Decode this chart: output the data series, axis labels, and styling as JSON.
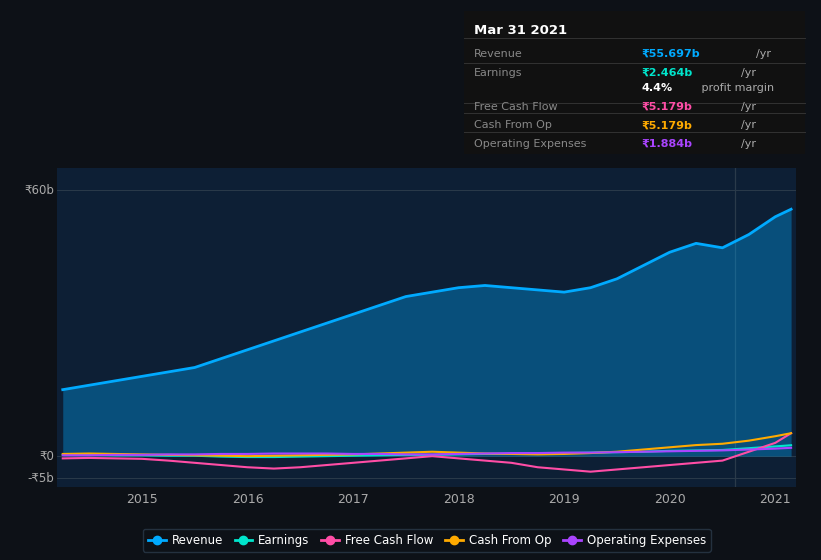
{
  "bg_color": "#0d1117",
  "plot_bg_color": "#0d1f35",
  "ylim": [
    -7000000000,
    65000000000
  ],
  "years": [
    2014.25,
    2014.5,
    2014.75,
    2015.0,
    2015.25,
    2015.5,
    2015.75,
    2016.0,
    2016.25,
    2016.5,
    2016.75,
    2017.0,
    2017.25,
    2017.5,
    2017.75,
    2018.0,
    2018.25,
    2018.5,
    2018.75,
    2019.0,
    2019.25,
    2019.5,
    2019.75,
    2020.0,
    2020.25,
    2020.5,
    2020.75,
    2021.0,
    2021.15
  ],
  "revenue": [
    15000000000,
    16000000000,
    17000000000,
    18000000000,
    19000000000,
    20000000000,
    22000000000,
    24000000000,
    26000000000,
    28000000000,
    30000000000,
    32000000000,
    34000000000,
    36000000000,
    37000000000,
    38000000000,
    38500000000,
    38000000000,
    37500000000,
    37000000000,
    38000000000,
    40000000000,
    43000000000,
    46000000000,
    48000000000,
    47000000000,
    50000000000,
    54000000000,
    55700000000
  ],
  "earnings": [
    300000000,
    300000000,
    200000000,
    200000000,
    100000000,
    100000000,
    -100000000,
    -200000000,
    -200000000,
    -100000000,
    0,
    100000000,
    200000000,
    300000000,
    300000000,
    400000000,
    500000000,
    500000000,
    600000000,
    700000000,
    800000000,
    900000000,
    1000000000,
    1200000000,
    1300000000,
    1400000000,
    1800000000,
    2200000000,
    2464000000
  ],
  "free_cash_flow": [
    -500000000,
    -400000000,
    -500000000,
    -600000000,
    -1000000000,
    -1500000000,
    -2000000000,
    -2500000000,
    -2800000000,
    -2500000000,
    -2000000000,
    -1500000000,
    -1000000000,
    -500000000,
    0,
    -500000000,
    -1000000000,
    -1500000000,
    -2500000000,
    -3000000000,
    -3500000000,
    -3000000000,
    -2500000000,
    -2000000000,
    -1500000000,
    -1000000000,
    1000000000,
    3000000000,
    5179000000
  ],
  "cash_from_op": [
    500000000,
    600000000,
    500000000,
    400000000,
    300000000,
    200000000,
    100000000,
    0,
    100000000,
    200000000,
    300000000,
    400000000,
    600000000,
    800000000,
    1000000000,
    800000000,
    600000000,
    500000000,
    400000000,
    500000000,
    700000000,
    1000000000,
    1500000000,
    2000000000,
    2500000000,
    2800000000,
    3500000000,
    4500000000,
    5179000000
  ],
  "op_expenses": [
    200000000,
    200000000,
    300000000,
    300000000,
    400000000,
    400000000,
    500000000,
    500000000,
    600000000,
    600000000,
    600000000,
    500000000,
    500000000,
    400000000,
    400000000,
    500000000,
    600000000,
    700000000,
    700000000,
    800000000,
    800000000,
    900000000,
    1000000000,
    1100000000,
    1200000000,
    1300000000,
    1500000000,
    1700000000,
    1884000000
  ],
  "revenue_color": "#00aaff",
  "earnings_color": "#00e5cc",
  "fcf_color": "#ff4da6",
  "cfo_color": "#ffaa00",
  "opex_color": "#aa44ff",
  "revenue_fill_alpha": 0.35,
  "y60_label": "₹60b",
  "y0_label": "₹0",
  "yn5_label": "-₹5b",
  "xtick_labels": [
    "2015",
    "2016",
    "2017",
    "2018",
    "2019",
    "2020",
    "2021"
  ],
  "xtick_values": [
    2015,
    2016,
    2017,
    2018,
    2019,
    2020,
    2021
  ],
  "separator_x": 2020.62,
  "info_box": {
    "title": "Mar 31 2021",
    "rows": [
      {
        "label": "Revenue",
        "value": "₹55.697b",
        "unit": "/yr",
        "value_color": "#00aaff",
        "divider_below": false
      },
      {
        "label": "Earnings",
        "value": "₹2.464b",
        "unit": "/yr",
        "value_color": "#00e5cc",
        "divider_below": false
      },
      {
        "label": "",
        "value": "4.4%",
        "unit": " profit margin",
        "value_color": "#ffffff",
        "divider_below": true
      },
      {
        "label": "Free Cash Flow",
        "value": "₹5.179b",
        "unit": "/yr",
        "value_color": "#ff4da6",
        "divider_below": false
      },
      {
        "label": "Cash From Op",
        "value": "₹5.179b",
        "unit": "/yr",
        "value_color": "#ffaa00",
        "divider_below": false
      },
      {
        "label": "Operating Expenses",
        "value": "₹1.884b",
        "unit": "/yr",
        "value_color": "#aa44ff",
        "divider_below": false
      }
    ]
  },
  "legend": [
    {
      "label": "Revenue",
      "color": "#00aaff"
    },
    {
      "label": "Earnings",
      "color": "#00e5cc"
    },
    {
      "label": "Free Cash Flow",
      "color": "#ff4da6"
    },
    {
      "label": "Cash From Op",
      "color": "#ffaa00"
    },
    {
      "label": "Operating Expenses",
      "color": "#aa44ff"
    }
  ]
}
